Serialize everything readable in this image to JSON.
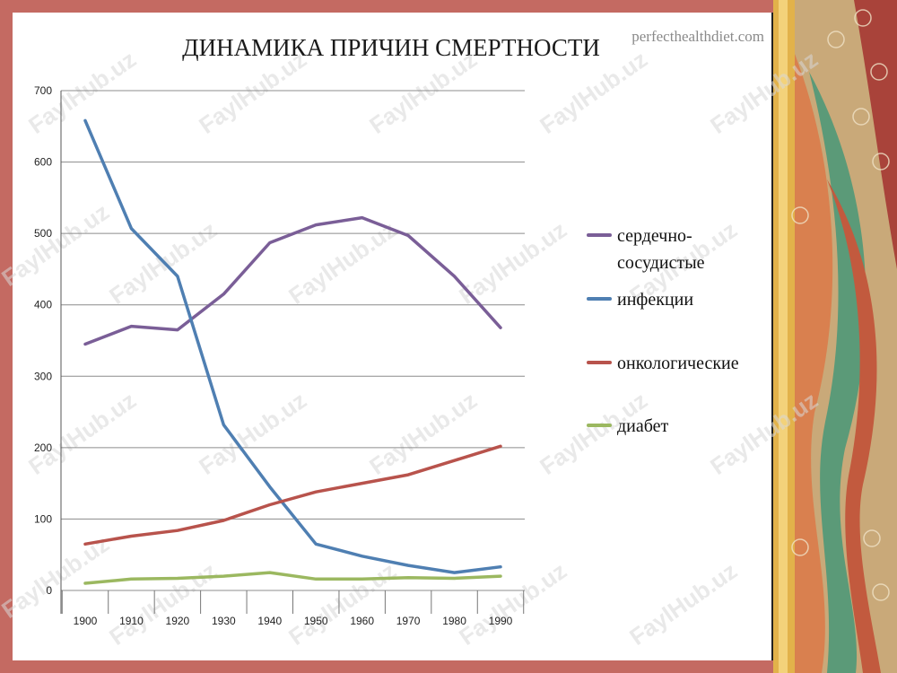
{
  "slide": {
    "source": "perfecthealthdiet.com",
    "watermark": "FaylHub.uz"
  },
  "colors": {
    "cardio": "#7a5e97",
    "infection": "#4f7fb2",
    "oncology": "#b8534c",
    "diabetes": "#9bb860",
    "grid": "#8c8c8c"
  },
  "chart_data": {
    "type": "line",
    "title": "ДИНАМИКА ПРИЧИН СМЕРТНОСТИ",
    "x": [
      1900,
      1910,
      1920,
      1930,
      1940,
      1950,
      1960,
      1970,
      1980,
      1990
    ],
    "xticks": [
      "1900",
      "1910",
      "1920",
      "1930",
      "1940",
      "1950",
      "1960",
      "1970",
      "1980",
      "1990"
    ],
    "yticks": [
      "0",
      "100",
      "200",
      "300",
      "400",
      "500",
      "600",
      "700"
    ],
    "ylim": [
      0,
      700
    ],
    "grid": "horizontal",
    "legend_position": "right",
    "series": [
      {
        "name_lines": [
          "сердечно-",
          "сосудистые"
        ],
        "color_key": "cardio",
        "values": [
          345,
          370,
          365,
          415,
          487,
          512,
          522,
          497,
          440,
          368
        ]
      },
      {
        "name_lines": [
          "инфекции"
        ],
        "color_key": "infection",
        "values": [
          658,
          507,
          440,
          232,
          145,
          65,
          48,
          35,
          25,
          33
        ]
      },
      {
        "name_lines": [
          "онкологические"
        ],
        "color_key": "oncology",
        "values": [
          65,
          76,
          84,
          98,
          120,
          138,
          150,
          162,
          182,
          202
        ]
      },
      {
        "name_lines": [
          "диабет"
        ],
        "color_key": "diabetes",
        "values": [
          10,
          16,
          17,
          20,
          25,
          16,
          16,
          18,
          17,
          20
        ]
      }
    ]
  }
}
